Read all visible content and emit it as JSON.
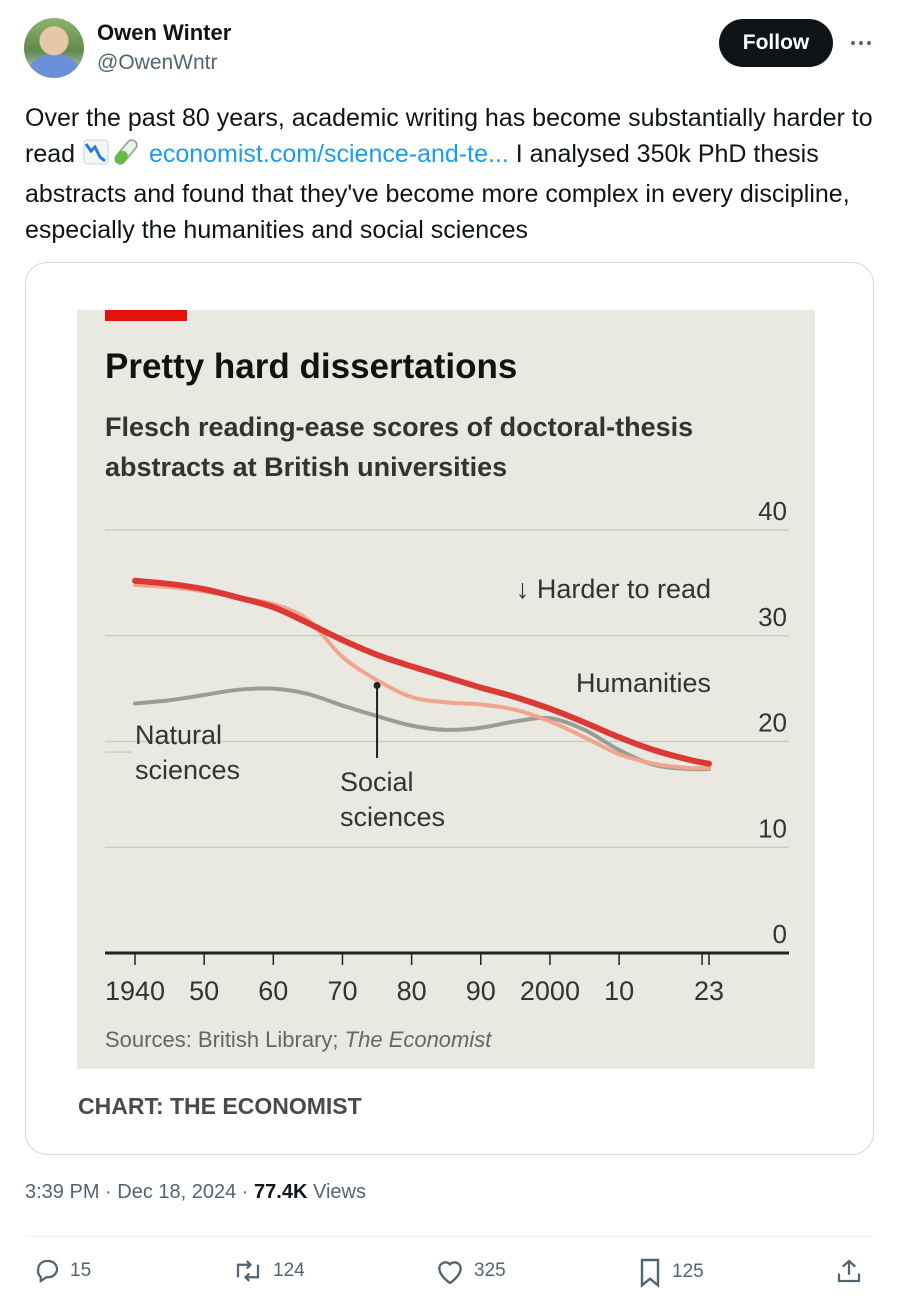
{
  "author": {
    "name": "Owen Winter",
    "handle": "@OwenWntr",
    "follow_label": "Follow",
    "more_icon": "more-horizontal-icon"
  },
  "tweet": {
    "text_before": "Over the past 80 years, academic writing has become substantially harder to read ",
    "emoji": [
      "chart-decreasing-emoji",
      "test-tube-emoji"
    ],
    "link_text": "economist.com/science-and-te...",
    "text_after": " I analysed 350k PhD thesis abstracts and found that they've become more complex in every discipline, especially the humanities and social sciences"
  },
  "chart_data": {
    "type": "line",
    "title": "Pretty hard dissertations",
    "subtitle": "Flesch reading-ease scores of doctoral-thesis abstracts at British universities",
    "annotation": "↓ Harder to read",
    "source_label": "Sources: British Library; ",
    "source_italic": "The Economist",
    "ylim": [
      0,
      40
    ],
    "yticks": [
      "40",
      "30",
      "20",
      "10",
      "0"
    ],
    "xlim": [
      1940,
      2023
    ],
    "xticks": [
      {
        "value": 1940,
        "label": "1940"
      },
      {
        "value": 1950,
        "label": "50"
      },
      {
        "value": 1960,
        "label": "60"
      },
      {
        "value": 1970,
        "label": "70"
      },
      {
        "value": 1980,
        "label": "80"
      },
      {
        "value": 1990,
        "label": "90"
      },
      {
        "value": 2000,
        "label": "2000"
      },
      {
        "value": 2010,
        "label": "10"
      },
      {
        "value": 2023,
        "label": "23"
      }
    ],
    "series": [
      {
        "name": "Natural sciences",
        "label_lines": [
          "Natural",
          "sciences"
        ],
        "color": "#9b9c94",
        "x": [
          1940,
          1945,
          1950,
          1955,
          1960,
          1965,
          1970,
          1975,
          1980,
          1985,
          1990,
          1995,
          2000,
          2005,
          2010,
          2015,
          2020,
          2023
        ],
        "values": [
          23.6,
          23.9,
          24.4,
          24.9,
          25.0,
          24.5,
          23.4,
          22.4,
          21.5,
          21.1,
          21.3,
          21.9,
          22.2,
          21.1,
          19.2,
          17.8,
          17.4,
          17.4
        ]
      },
      {
        "name": "Social sciences",
        "label_lines": [
          "Social",
          "sciences"
        ],
        "color": "#f0a58c",
        "x": [
          1940,
          1945,
          1950,
          1955,
          1960,
          1965,
          1970,
          1975,
          1980,
          1985,
          1990,
          1995,
          2000,
          2005,
          2010,
          2015,
          2020,
          2023
        ],
        "values": [
          34.8,
          34.6,
          34.2,
          33.6,
          33.0,
          31.5,
          28.0,
          25.8,
          24.2,
          23.7,
          23.5,
          23.0,
          21.9,
          20.4,
          18.8,
          17.9,
          17.5,
          17.5
        ]
      },
      {
        "name": "Humanities",
        "label_lines": [
          "Humanities"
        ],
        "color": "#db3a34",
        "x": [
          1940,
          1945,
          1950,
          1955,
          1960,
          1965,
          1970,
          1975,
          1980,
          1985,
          1990,
          1995,
          2000,
          2005,
          2010,
          2015,
          2020,
          2023
        ],
        "values": [
          35.2,
          34.9,
          34.4,
          33.6,
          32.7,
          31.2,
          29.6,
          28.2,
          27.1,
          26.1,
          25.1,
          24.2,
          23.1,
          21.8,
          20.4,
          19.2,
          18.3,
          17.9
        ]
      }
    ]
  },
  "chart_credit": "CHART: THE ECONOMIST",
  "meta": {
    "time": "3:39 PM",
    "sep": " · ",
    "date": "Dec 18, 2024",
    "views_count": "77.4K",
    "views_label": " Views"
  },
  "actions": {
    "replies": "15",
    "reposts": "124",
    "likes": "325",
    "bookmarks": "125"
  }
}
